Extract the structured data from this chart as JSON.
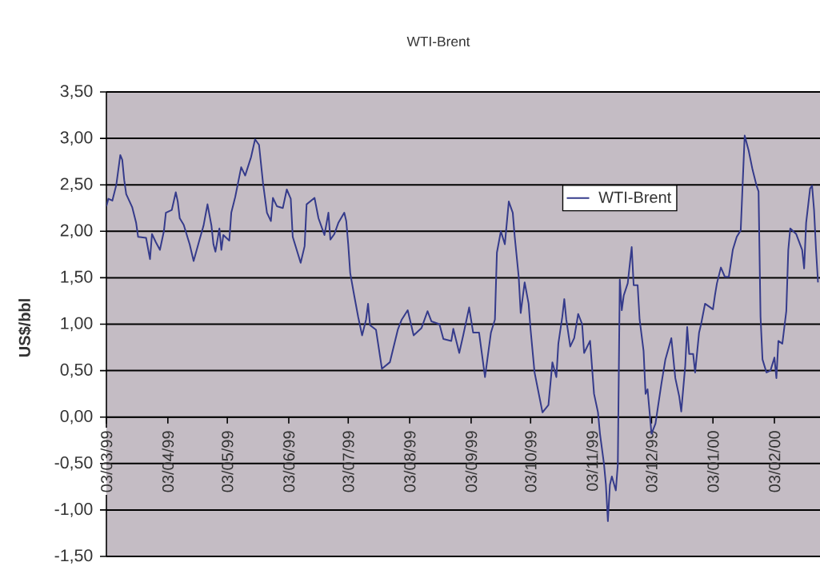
{
  "chart_data": {
    "type": "line",
    "title": "WTI-Brent",
    "ylabel": "US$/bbl",
    "x": [
      "1999-03-03",
      "1999-03-04",
      "1999-03-06",
      "1999-03-08",
      "1999-03-10",
      "1999-03-11",
      "1999-03-12",
      "1999-03-13",
      "1999-03-16",
      "1999-03-18",
      "1999-03-19",
      "1999-03-23",
      "1999-03-25",
      "1999-03-26",
      "1999-03-28",
      "1999-03-30",
      "1999-04-01",
      "1999-04-02",
      "1999-04-05",
      "1999-04-07",
      "1999-04-08",
      "1999-04-09",
      "1999-04-11",
      "1999-04-14",
      "1999-04-16",
      "1999-04-19",
      "1999-04-21",
      "1999-04-23",
      "1999-04-25",
      "1999-04-26",
      "1999-04-27",
      "1999-04-29",
      "1999-04-30",
      "1999-05-01",
      "1999-05-04",
      "1999-05-05",
      "1999-05-07",
      "1999-05-10",
      "1999-05-12",
      "1999-05-15",
      "1999-05-17",
      "1999-05-19",
      "1999-05-21",
      "1999-05-23",
      "1999-05-25",
      "1999-05-26",
      "1999-05-28",
      "1999-05-31",
      "1999-06-02",
      "1999-06-04",
      "1999-06-05",
      "1999-06-09",
      "1999-06-11",
      "1999-06-12",
      "1999-06-16",
      "1999-06-18",
      "1999-06-21",
      "1999-06-23",
      "1999-06-24",
      "1999-06-26",
      "1999-06-28",
      "1999-07-01",
      "1999-07-02",
      "1999-07-03",
      "1999-07-04",
      "1999-07-06",
      "1999-07-08",
      "1999-07-10",
      "1999-07-12",
      "1999-07-13",
      "1999-07-14",
      "1999-07-17",
      "1999-07-20",
      "1999-07-24",
      "1999-07-28",
      "1999-07-30",
      "1999-08-02",
      "1999-08-05",
      "1999-08-09",
      "1999-08-12",
      "1999-08-14",
      "1999-08-18",
      "1999-08-20",
      "1999-08-24",
      "1999-08-25",
      "1999-08-28",
      "1999-08-30",
      "1999-09-02",
      "1999-09-04",
      "1999-09-07",
      "1999-09-10",
      "1999-09-13",
      "1999-09-15",
      "1999-09-16",
      "1999-09-18",
      "1999-09-20",
      "1999-09-22",
      "1999-09-24",
      "1999-09-25",
      "1999-09-27",
      "1999-09-28",
      "1999-09-30",
      "1999-10-02",
      "1999-10-03",
      "1999-10-05",
      "1999-10-09",
      "1999-10-12",
      "1999-10-14",
      "1999-10-16",
      "1999-10-17",
      "1999-10-19",
      "1999-10-20",
      "1999-10-21",
      "1999-10-23",
      "1999-10-25",
      "1999-10-27",
      "1999-10-29",
      "1999-10-30",
      "1999-11-02",
      "1999-11-04",
      "1999-11-06",
      "1999-11-07",
      "1999-11-09",
      "1999-11-10",
      "1999-11-11",
      "1999-11-12",
      "1999-11-13",
      "1999-11-15",
      "1999-11-16",
      "1999-11-17",
      "1999-11-18",
      "1999-11-19",
      "1999-11-21",
      "1999-11-23",
      "1999-11-24",
      "1999-11-26",
      "1999-11-27",
      "1999-11-29",
      "1999-11-30",
      "1999-12-01",
      "1999-12-03",
      "1999-12-05",
      "1999-12-08",
      "1999-12-10",
      "1999-12-13",
      "1999-12-15",
      "1999-12-17",
      "1999-12-18",
      "1999-12-20",
      "1999-12-21",
      "1999-12-22",
      "1999-12-24",
      "1999-12-25",
      "1999-12-27",
      "1999-12-28",
      "1999-12-30",
      "2000-01-03",
      "2000-01-04",
      "2000-01-05",
      "2000-01-07",
      "2000-01-09",
      "2000-01-11",
      "2000-01-13",
      "2000-01-15",
      "2000-01-17",
      "2000-01-19",
      "2000-01-21",
      "2000-01-23",
      "2000-01-25",
      "2000-01-26",
      "2000-01-27",
      "2000-01-28",
      "2000-01-30",
      "2000-02-01",
      "2000-02-03",
      "2000-02-04",
      "2000-02-05",
      "2000-02-07",
      "2000-02-09",
      "2000-02-10",
      "2000-02-11",
      "2000-02-14",
      "2000-02-17",
      "2000-02-18",
      "2000-02-19",
      "2000-02-21",
      "2000-02-22",
      "2000-02-23",
      "2000-02-24",
      "2000-02-25"
    ],
    "series": [
      {
        "name": "WTI-Brent",
        "color": "#353b8b",
        "values": [
          2.27,
          2.35,
          2.33,
          2.5,
          2.82,
          2.77,
          2.55,
          2.4,
          2.26,
          2.09,
          1.94,
          1.93,
          1.7,
          1.97,
          1.88,
          1.8,
          2.0,
          2.2,
          2.23,
          2.42,
          2.32,
          2.14,
          2.07,
          1.86,
          1.68,
          1.91,
          2.06,
          2.29,
          2.06,
          1.86,
          1.78,
          2.03,
          1.8,
          1.96,
          1.9,
          2.2,
          2.37,
          2.69,
          2.6,
          2.8,
          2.99,
          2.93,
          2.52,
          2.2,
          2.11,
          2.36,
          2.27,
          2.25,
          2.45,
          2.35,
          1.94,
          1.66,
          1.84,
          2.29,
          2.36,
          2.14,
          1.96,
          2.2,
          1.91,
          1.97,
          2.09,
          2.2,
          2.11,
          1.86,
          1.55,
          1.31,
          1.08,
          0.88,
          1.05,
          1.22,
          0.99,
          0.94,
          0.52,
          0.59,
          0.94,
          1.05,
          1.15,
          0.88,
          0.96,
          1.14,
          1.03,
          1.0,
          0.84,
          0.82,
          0.95,
          0.69,
          0.88,
          1.18,
          0.91,
          0.91,
          0.43,
          0.91,
          1.05,
          1.77,
          2.0,
          1.86,
          2.32,
          2.2,
          1.94,
          1.51,
          1.12,
          1.45,
          1.22,
          0.94,
          0.48,
          0.05,
          0.13,
          0.59,
          0.43,
          0.79,
          1.08,
          1.27,
          1.05,
          0.76,
          0.85,
          1.11,
          1.0,
          0.69,
          0.82,
          0.25,
          0.05,
          -0.18,
          -0.5,
          -0.73,
          -1.12,
          -0.73,
          -0.64,
          -0.79,
          -0.51,
          1.48,
          1.15,
          1.31,
          1.44,
          1.83,
          1.42,
          1.42,
          1.05,
          0.71,
          0.25,
          0.3,
          -0.18,
          -0.07,
          0.36,
          0.62,
          0.85,
          0.42,
          0.22,
          0.06,
          0.55,
          0.97,
          0.68,
          0.68,
          0.48,
          0.91,
          1.0,
          1.22,
          1.16,
          1.31,
          1.44,
          1.61,
          1.51,
          1.51,
          1.8,
          1.94,
          2.01,
          3.03,
          2.87,
          2.66,
          2.49,
          2.43,
          1.08,
          0.62,
          0.48,
          0.5,
          0.64,
          0.42,
          0.82,
          0.79,
          1.14,
          1.8,
          2.03,
          1.97,
          1.8,
          1.6,
          2.09,
          2.46,
          2.49,
          2.23,
          1.8,
          1.45
        ]
      }
    ],
    "xlim": [
      "1999-03-03",
      "2000-02-26"
    ],
    "xticks": [
      {
        "value": "1999-03-03",
        "label": "03/03/99"
      },
      {
        "value": "1999-04-03",
        "label": "03/04/99"
      },
      {
        "value": "1999-05-03",
        "label": "03/05/99"
      },
      {
        "value": "1999-06-03",
        "label": "03/06/99"
      },
      {
        "value": "1999-07-03",
        "label": "03/07/99"
      },
      {
        "value": "1999-08-03",
        "label": "03/08/99"
      },
      {
        "value": "1999-09-03",
        "label": "03/09/99"
      },
      {
        "value": "1999-10-03",
        "label": "03/10/99"
      },
      {
        "value": "1999-11-03",
        "label": "03/11/99"
      },
      {
        "value": "1999-12-03",
        "label": "03/12/99"
      },
      {
        "value": "2000-01-03",
        "label": "03/01/00"
      },
      {
        "value": "2000-02-03",
        "label": "03/02/00"
      }
    ],
    "ylim": [
      -1.5,
      3.5
    ],
    "yticks": [
      {
        "value": -1.5,
        "label": "-1,50"
      },
      {
        "value": -1.0,
        "label": "-1,00"
      },
      {
        "value": -0.5,
        "label": "-0,50"
      },
      {
        "value": 0,
        "label": "0,00"
      },
      {
        "value": 0.5,
        "label": "0,50"
      },
      {
        "value": 1.0,
        "label": "1,00"
      },
      {
        "value": 1.5,
        "label": "1,50"
      },
      {
        "value": 2.0,
        "label": "2,00"
      },
      {
        "value": 2.5,
        "label": "2,50"
      },
      {
        "value": 3.0,
        "label": "3,00"
      },
      {
        "value": 3.5,
        "label": "3,50"
      }
    ],
    "grid": "y",
    "legend": "top right",
    "marker": "none",
    "line_style": "solid"
  }
}
